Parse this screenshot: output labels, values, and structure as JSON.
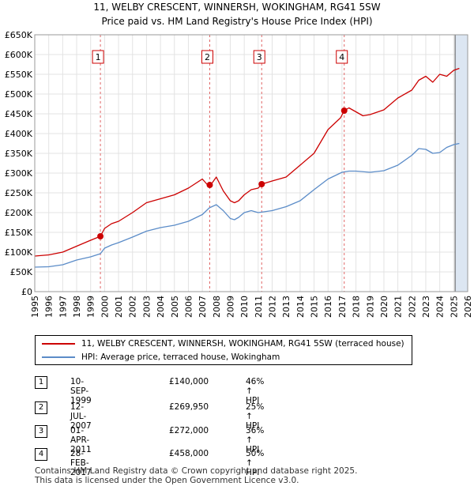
{
  "title_line1": "11, WELBY CRESCENT, WINNERSH, WOKINGHAM, RG41 5SW",
  "title_line2": "Price paid vs. HM Land Registry's House Price Index (HPI)",
  "colors": {
    "property": "#cc0000",
    "hpi": "#5b8cc8",
    "shade": "#dce6f2",
    "marker_line": "#e06666"
  },
  "chart_data": {
    "type": "line",
    "title": "11, WELBY CRESCENT, WINNERSH, WOKINGHAM, RG41 5SW",
    "subtitle": "Price paid vs. HM Land Registry's House Price Index (HPI)",
    "xlim": [
      1995,
      2026
    ],
    "ylim": [
      0,
      650000
    ],
    "y_ticks": [
      0,
      50000,
      100000,
      150000,
      200000,
      250000,
      300000,
      350000,
      400000,
      450000,
      500000,
      550000,
      600000,
      650000
    ],
    "y_tick_labels": [
      "£0",
      "£50K",
      "£100K",
      "£150K",
      "£200K",
      "£250K",
      "£300K",
      "£350K",
      "£400K",
      "£450K",
      "£500K",
      "£550K",
      "£600K",
      "£650K"
    ],
    "x_ticks": [
      1995,
      1996,
      1997,
      1998,
      1999,
      2000,
      2001,
      2002,
      2003,
      2004,
      2005,
      2006,
      2007,
      2008,
      2009,
      2010,
      2011,
      2012,
      2013,
      2014,
      2015,
      2016,
      2017,
      2018,
      2019,
      2020,
      2021,
      2022,
      2023,
      2024,
      2025,
      2026
    ],
    "grid": true,
    "future_shading_from": 2025.1,
    "series": [
      {
        "name": "11, WELBY CRESCENT, WINNERSH, WOKINGHAM, RG41 5SW (terraced house)",
        "color": "#cc0000",
        "x": [
          1995.0,
          1996.0,
          1997.0,
          1998.0,
          1999.0,
          1999.7,
          2000.0,
          2000.5,
          2001.0,
          2002.0,
          2003.0,
          2004.0,
          2005.0,
          2006.0,
          2007.0,
          2007.5,
          2008.0,
          2008.5,
          2009.0,
          2009.3,
          2009.6,
          2010.0,
          2010.5,
          2011.0,
          2011.25,
          2012.0,
          2013.0,
          2014.0,
          2015.0,
          2016.0,
          2016.9,
          2017.16,
          2017.5,
          2018.0,
          2018.5,
          2019.0,
          2020.0,
          2021.0,
          2022.0,
          2022.5,
          2023.0,
          2023.5,
          2024.0,
          2024.5,
          2025.0,
          2025.4
        ],
        "values": [
          90000,
          93000,
          100000,
          115000,
          130000,
          140000,
          160000,
          172000,
          178000,
          200000,
          225000,
          235000,
          245000,
          262000,
          285000,
          265000,
          290000,
          255000,
          230000,
          225000,
          230000,
          245000,
          258000,
          262000,
          272000,
          280000,
          290000,
          320000,
          350000,
          410000,
          440000,
          458000,
          465000,
          455000,
          445000,
          448000,
          460000,
          490000,
          510000,
          535000,
          545000,
          530000,
          550000,
          545000,
          560000,
          565000
        ]
      },
      {
        "name": "HPI: Average price, terraced house, Wokingham",
        "color": "#5b8cc8",
        "x": [
          1995.0,
          1996.0,
          1997.0,
          1998.0,
          1999.0,
          1999.7,
          2000.0,
          2000.5,
          2001.0,
          2002.0,
          2003.0,
          2004.0,
          2005.0,
          2006.0,
          2007.0,
          2007.5,
          2008.0,
          2008.5,
          2009.0,
          2009.3,
          2009.6,
          2010.0,
          2010.5,
          2011.0,
          2012.0,
          2013.0,
          2014.0,
          2015.0,
          2016.0,
          2017.0,
          2017.5,
          2018.0,
          2019.0,
          2020.0,
          2021.0,
          2022.0,
          2022.5,
          2023.0,
          2023.5,
          2024.0,
          2024.5,
          2025.0,
          2025.4
        ],
        "values": [
          62000,
          63000,
          68000,
          80000,
          88000,
          96000,
          110000,
          118000,
          124000,
          138000,
          153000,
          162000,
          168000,
          178000,
          195000,
          212000,
          220000,
          205000,
          185000,
          182000,
          188000,
          200000,
          205000,
          200000,
          205000,
          215000,
          230000,
          258000,
          285000,
          302000,
          305000,
          305000,
          302000,
          306000,
          320000,
          345000,
          362000,
          360000,
          350000,
          352000,
          365000,
          372000,
          375000
        ]
      }
    ],
    "sales": [
      {
        "label": "1",
        "x": 1999.7,
        "value": 140000
      },
      {
        "label": "2",
        "x": 2007.53,
        "value": 269950
      },
      {
        "label": "3",
        "x": 2011.25,
        "value": 272000
      },
      {
        "label": "4",
        "x": 2017.16,
        "value": 458000
      }
    ]
  },
  "legend": {
    "property_label": "11, WELBY CRESCENT, WINNERSH, WOKINGHAM, RG41 5SW (terraced house)",
    "hpi_label": "HPI: Average price, terraced house, Wokingham"
  },
  "transactions": [
    {
      "num": "1",
      "date": "10-SEP-1999",
      "price": "£140,000",
      "hpi": "46% ↑ HPI"
    },
    {
      "num": "2",
      "date": "12-JUL-2007",
      "price": "£269,950",
      "hpi": "25% ↑ HPI"
    },
    {
      "num": "3",
      "date": "01-APR-2011",
      "price": "£272,000",
      "hpi": "36% ↑ HPI"
    },
    {
      "num": "4",
      "date": "28-FEB-2017",
      "price": "£458,000",
      "hpi": "50% ↑ HPI"
    }
  ],
  "footer": {
    "line1": "Contains HM Land Registry data © Crown copyright and database right 2025.",
    "line2": "This data is licensed under the Open Government Licence v3.0."
  }
}
